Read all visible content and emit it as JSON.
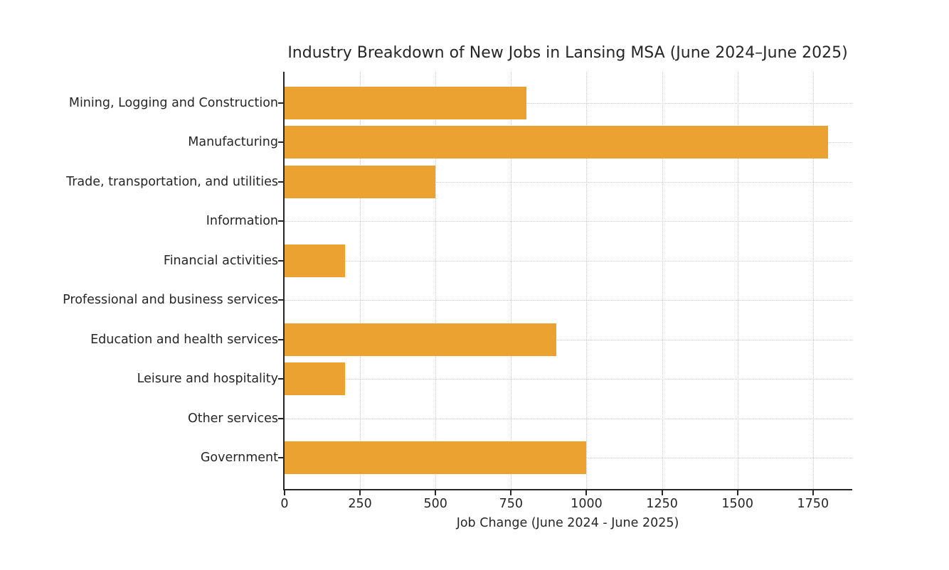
{
  "chart_data": {
    "type": "bar",
    "orientation": "horizontal",
    "title": "Industry Breakdown of New Jobs in Lansing MSA (June 2024–June 2025)",
    "xlabel": "Job Change (June 2024 - June 2025)",
    "categories": [
      "Mining, Logging and Construction",
      "Manufacturing",
      "Trade, transportation, and utilities",
      "Information",
      "Financial activities",
      "Professional and business services",
      "Education and health services",
      "Leisure and hospitality",
      "Other services",
      "Government"
    ],
    "values": [
      800,
      1800,
      500,
      0,
      200,
      0,
      900,
      200,
      0,
      1000
    ],
    "x_ticks": [
      0,
      250,
      500,
      750,
      1000,
      1250,
      1500,
      1750
    ],
    "xlim": [
      0,
      1880
    ],
    "grid": true,
    "legend": "none",
    "bar_color": "#EBA230",
    "axis_color": "#262626",
    "grid_color": "#cbcbcb",
    "text_color": "#262626",
    "background_color": "#ffffff"
  }
}
